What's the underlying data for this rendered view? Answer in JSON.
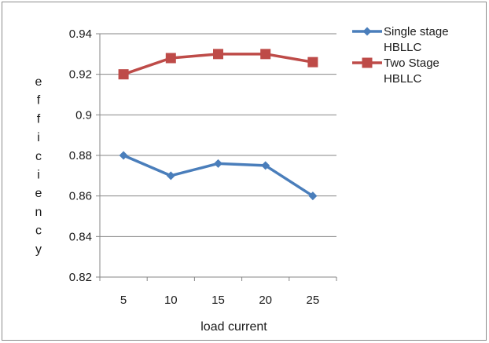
{
  "chart_data": {
    "type": "line",
    "title": "",
    "xlabel": "load current",
    "ylabel": "efficiency",
    "categories": [
      "5",
      "10",
      "15",
      "20",
      "25"
    ],
    "ylim": [
      0.82,
      0.94
    ],
    "yticks": [
      "0.82",
      "0.84",
      "0.86",
      "0.88",
      "0.9",
      "0.92",
      "0.94"
    ],
    "grid": "horizontal",
    "legend_position": "right",
    "series": [
      {
        "name_lines": [
          "Single stage",
          "HBLLC"
        ],
        "values": [
          0.88,
          0.87,
          0.876,
          0.875,
          0.86
        ],
        "color": "#4a7ebb",
        "marker": "diamond"
      },
      {
        "name_lines": [
          "Two Stage",
          "HBLLC"
        ],
        "values": [
          0.92,
          0.928,
          0.93,
          0.93,
          0.926
        ],
        "color": "#be4b48",
        "marker": "square"
      }
    ]
  }
}
